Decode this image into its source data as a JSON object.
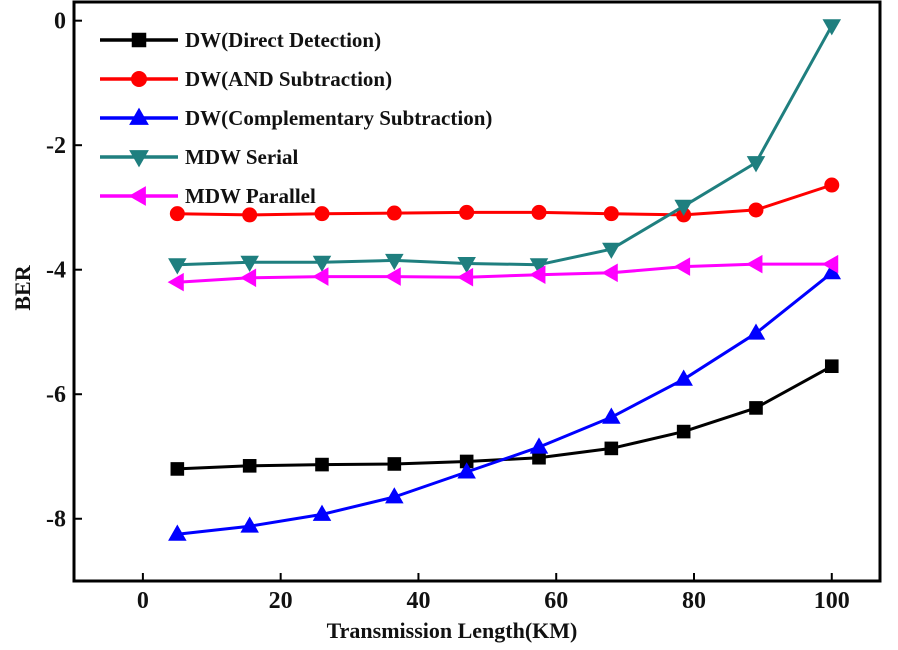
{
  "chart_data": {
    "type": "line",
    "title": "",
    "xlabel": "Transmission Length(KM)",
    "ylabel": "BER",
    "xlim": [
      -10,
      107
    ],
    "ylim": [
      -9,
      0.3
    ],
    "xticks": [
      0,
      20,
      40,
      60,
      80,
      100
    ],
    "yticks": [
      0,
      -2,
      -4,
      -6,
      -8
    ],
    "xtick_labels": [
      "0",
      "20",
      "40",
      "60",
      "80",
      "100"
    ],
    "ytick_labels": [
      "0",
      "-2",
      "-4",
      "-6",
      "-8"
    ],
    "grid": false,
    "legend_position": "top-left",
    "x": [
      5,
      15.5,
      26,
      36.5,
      47,
      57.5,
      68,
      78.5,
      89,
      100
    ],
    "series": [
      {
        "name": "DW(Direct Detection)",
        "color": "#000000",
        "marker": "square",
        "values": [
          -7.2,
          -7.15,
          -7.13,
          -7.12,
          -7.08,
          -7.02,
          -6.87,
          -6.6,
          -6.22,
          -5.55
        ]
      },
      {
        "name": "DW(AND Subtraction)",
        "color": "#ff0000",
        "marker": "circle",
        "values": [
          -3.1,
          -3.12,
          -3.1,
          -3.09,
          -3.08,
          -3.08,
          -3.1,
          -3.12,
          -3.04,
          -2.64
        ]
      },
      {
        "name": "DW(Complementary Subtraction)",
        "color": "#0000ff",
        "marker": "triangle-up",
        "values": [
          -8.25,
          -8.12,
          -7.93,
          -7.65,
          -7.25,
          -6.85,
          -6.37,
          -5.76,
          -5.02,
          -4.05
        ]
      },
      {
        "name": "MDW Serial",
        "color": "#1f7f7f",
        "marker": "triangle-down",
        "values": [
          -3.92,
          -3.88,
          -3.88,
          -3.85,
          -3.9,
          -3.92,
          -3.67,
          -2.98,
          -2.28,
          -0.08
        ]
      },
      {
        "name": "MDW Parallel",
        "color": "#ff00ff",
        "marker": "triangle-left",
        "values": [
          -4.2,
          -4.13,
          -4.11,
          -4.11,
          -4.12,
          -4.08,
          -4.05,
          -3.95,
          -3.91,
          -3.91
        ]
      }
    ]
  }
}
